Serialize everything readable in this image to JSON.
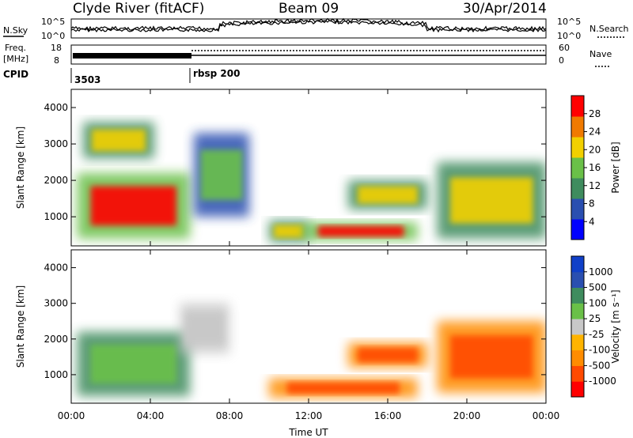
{
  "header": {
    "title": "Clyde River (fitACF)",
    "beam": "Beam 09",
    "date": "30/Apr/2014"
  },
  "strip": {
    "nsky_label": "N.Sky",
    "nsky_ticks": [
      "10^5",
      "10^0"
    ],
    "nsearch_label": "N.Search",
    "nsearch_ticks": [
      "10^5",
      "10^0"
    ],
    "freq_label": "Freq.",
    "freq_unit": "[MHz]",
    "freq_ticks": [
      "18",
      "8"
    ],
    "nave_label": "Nave",
    "nave_ticks": [
      "60",
      "0"
    ],
    "cpid_label": "CPID",
    "cpid_segments": [
      {
        "label": "3503",
        "start_h": 0,
        "end_h": 6
      },
      {
        "label": "rbsp 200",
        "start_h": 6,
        "end_h": 24
      }
    ]
  },
  "chart_data": [
    {
      "type": "heatmap",
      "name": "power",
      "ylabel": "Slant Range [km]",
      "xlim": [
        0,
        24
      ],
      "ylim": [
        200,
        4500
      ],
      "yticks": [
        1000,
        2000,
        3000,
        4000
      ],
      "colorbar": {
        "label": "Power [dB]",
        "ticks": [
          "4",
          "8",
          "12",
          "16",
          "20",
          "24",
          "28"
        ],
        "colors": [
          "#0000ff",
          "#2a4fb0",
          "#3f8c5e",
          "#6ac048",
          "#f2d000",
          "#f07a00",
          "#ff0000"
        ]
      },
      "regions": [
        {
          "x": [
            0.3,
            6.0
          ],
          "y": [
            400,
            2200
          ],
          "level": "high"
        },
        {
          "x": [
            0.6,
            4.2
          ],
          "y": [
            2600,
            3600
          ],
          "level": "medium"
        },
        {
          "x": [
            6.2,
            9.0
          ],
          "y": [
            1000,
            3300
          ],
          "level": "low"
        },
        {
          "x": [
            10.0,
            12.0
          ],
          "y": [
            300,
            900
          ],
          "level": "medium"
        },
        {
          "x": [
            11.8,
            17.5
          ],
          "y": [
            350,
            850
          ],
          "level": "high"
        },
        {
          "x": [
            14.0,
            18.0
          ],
          "y": [
            1200,
            2000
          ],
          "level": "medium"
        },
        {
          "x": [
            18.5,
            24.0
          ],
          "y": [
            400,
            2500
          ],
          "level": "medium"
        }
      ]
    },
    {
      "type": "heatmap",
      "name": "velocity",
      "ylabel": "Slant Range [km]",
      "xlabel": "Time UT",
      "xlim": [
        0,
        24
      ],
      "xticks": [
        "00:00",
        "04:00",
        "08:00",
        "12:00",
        "16:00",
        "20:00",
        "00:00"
      ],
      "ylim": [
        200,
        4500
      ],
      "yticks": [
        1000,
        2000,
        3000,
        4000
      ],
      "colorbar": {
        "label": "Velocity [m s⁻¹]",
        "ticks": [
          "-1000",
          "-500",
          "-100",
          "-25",
          "25",
          "100",
          "500",
          "1000"
        ],
        "colors": [
          "#ff0000",
          "#ff4a00",
          "#ff8c00",
          "#ffb400",
          "#c8c8c8",
          "#6ac048",
          "#3f8c5e",
          "#2a4fb0",
          "#1040c8"
        ]
      },
      "regions": [
        {
          "x": [
            0.3,
            6.0
          ],
          "y": [
            400,
            2200
          ],
          "level": "positive"
        },
        {
          "x": [
            5.5,
            8.0
          ],
          "y": [
            1600,
            3000
          ],
          "level": "near-zero"
        },
        {
          "x": [
            10.0,
            17.5
          ],
          "y": [
            350,
            900
          ],
          "level": "negative"
        },
        {
          "x": [
            14.0,
            18.0
          ],
          "y": [
            1200,
            1900
          ],
          "level": "negative"
        },
        {
          "x": [
            18.5,
            24.0
          ],
          "y": [
            500,
            2500
          ],
          "level": "negative"
        }
      ]
    }
  ]
}
